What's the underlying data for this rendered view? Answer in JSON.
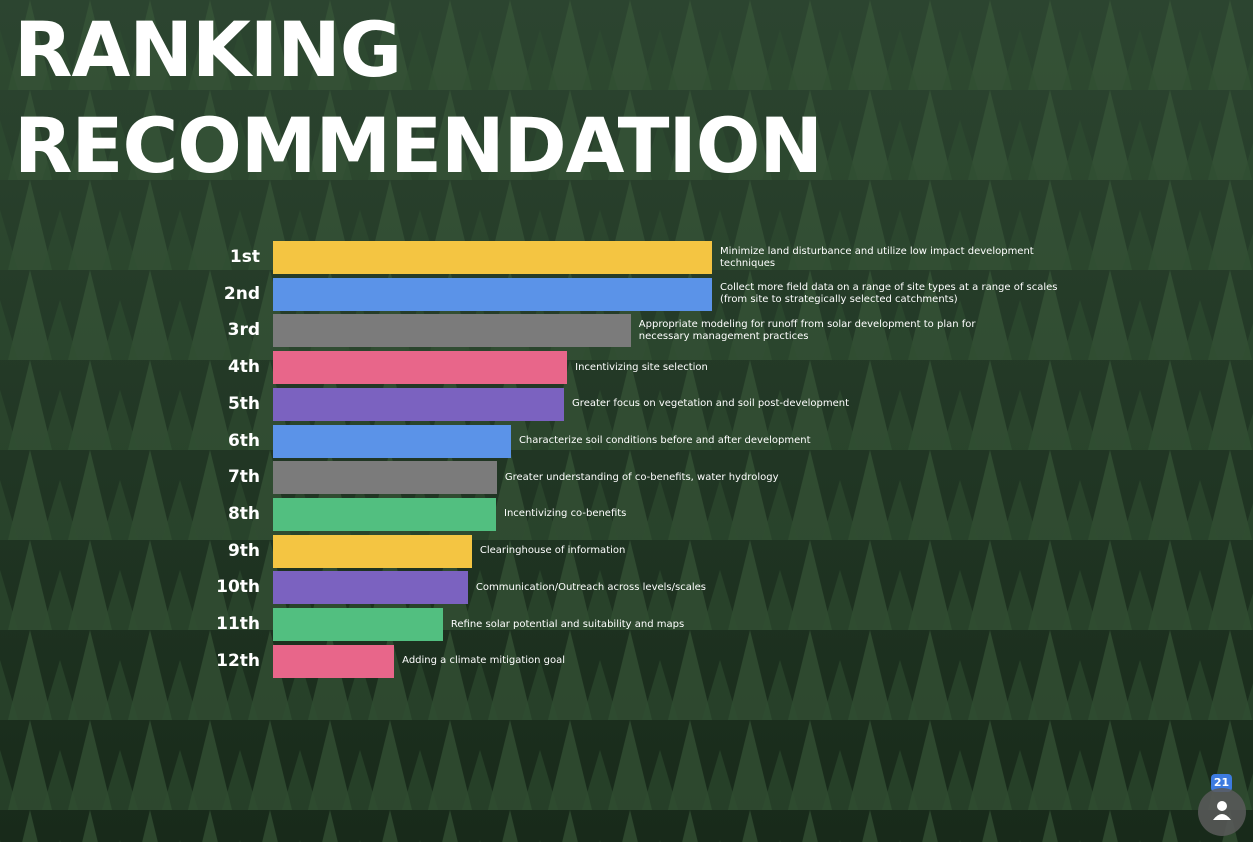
{
  "chart_data": {
    "type": "bar",
    "orientation": "horizontal",
    "title": "RANKING RECOMMENDATION",
    "categories": [
      "1st",
      "2nd",
      "3rd",
      "4th",
      "5th",
      "6th",
      "7th",
      "8th",
      "9th",
      "10th",
      "11th",
      "12th"
    ],
    "labels": [
      "Minimize land disturbance and utilize low impact development techniques",
      "Collect more field data on a range of site types at a range of scales (from site to strategically selected catchments)",
      "Appropriate modeling for runoff from solar development to plan for necessary management practices",
      "Incentivizing site selection",
      "Greater focus on vegetation and soil post-development",
      "Characterize soil conditions before and after development",
      "Greater understanding of co-benefits, water hydrology",
      "Incentivizing co-benefits",
      "Clearinghouse of information",
      "Communication/Outreach across levels/scales",
      "Refine solar potential and suitability and maps",
      "Adding a climate mitigation goal"
    ],
    "values": [
      100,
      100,
      81.5,
      67,
      66.3,
      54.2,
      51,
      50.8,
      45.3,
      44.4,
      38.7,
      27.6
    ],
    "colors": [
      "#f4c542",
      "#5b93e8",
      "#7b7b7b",
      "#e8668a",
      "#7b62c0",
      "#5b93e8",
      "#7b7b7b",
      "#52bf80",
      "#f4c542",
      "#7b62c0",
      "#52bf80",
      "#e8668a"
    ],
    "xlim": [
      0,
      100
    ],
    "participants": 21
  }
}
